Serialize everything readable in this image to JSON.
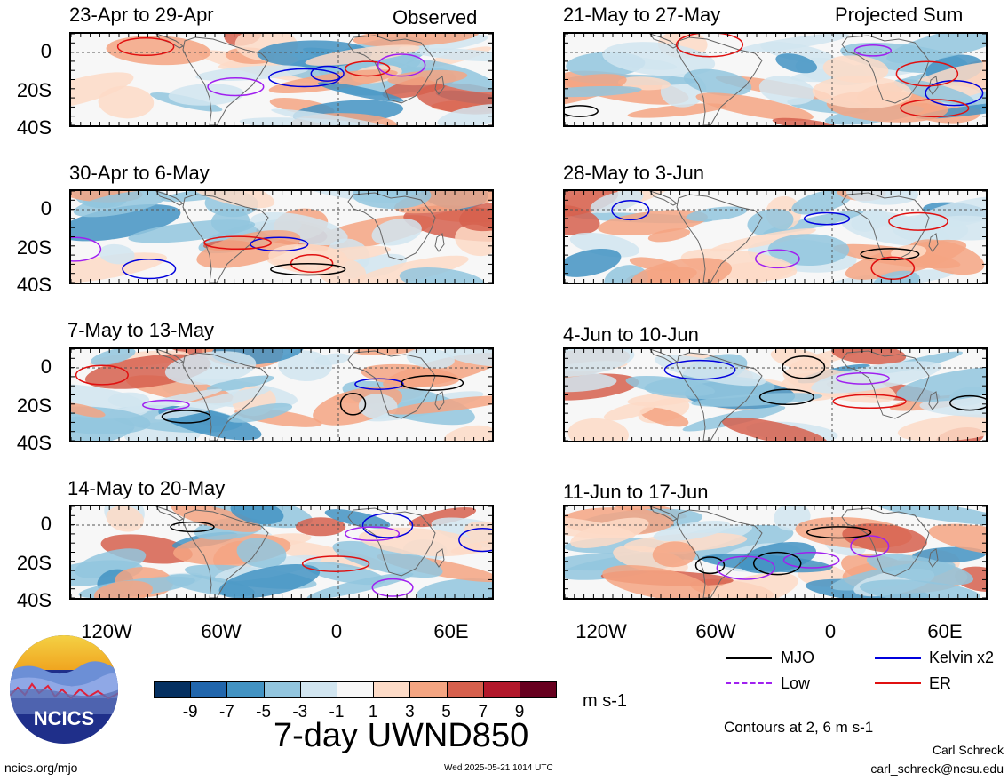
{
  "headers": {
    "left": "Observed",
    "right": "Projected Sum"
  },
  "panels": [
    {
      "label": "23-Apr to 29-Apr"
    },
    {
      "label": "30-Apr to 6-May"
    },
    {
      "label": "7-May to 13-May"
    },
    {
      "label": "14-May to 20-May"
    },
    {
      "label": "21-May to 27-May"
    },
    {
      "label": "28-May to 3-Jun"
    },
    {
      "label": "4-Jun to 10-Jun"
    },
    {
      "label": "11-Jun to 17-Jun"
    }
  ],
  "y_ticks": [
    "0",
    "20S",
    "40S"
  ],
  "x_ticks": [
    "120W",
    "60W",
    "0",
    "60E"
  ],
  "legend": {
    "mjo": "MJO",
    "kelvin": "Kelvin x2",
    "low": "Low",
    "er": "ER",
    "colors": {
      "mjo": "#000000",
      "kelvin": "#0000dd",
      "low": "#a020f0",
      "er": "#e01010"
    }
  },
  "colorbar": {
    "labels": [
      "-9",
      "-7",
      "-5",
      "-3",
      "-1",
      "1",
      "3",
      "5",
      "7",
      "9"
    ],
    "colors": [
      "#053061",
      "#2166ac",
      "#4393c3",
      "#92c5de",
      "#d1e5f0",
      "#f7f7f7",
      "#fddbc7",
      "#f4a582",
      "#d6604d",
      "#b2182b",
      "#67001f"
    ],
    "units": "m s-1"
  },
  "title": "7-day UWND850",
  "contour_note": "Contours at 2, 6 m s-1",
  "logo_text": "NCICS",
  "site": "ncics.org/mjo",
  "timestamp": "Wed 2025-05-21 1014 UTC",
  "author": "Carl Schreck",
  "email": "carl_schreck@ncsu.edu"
}
